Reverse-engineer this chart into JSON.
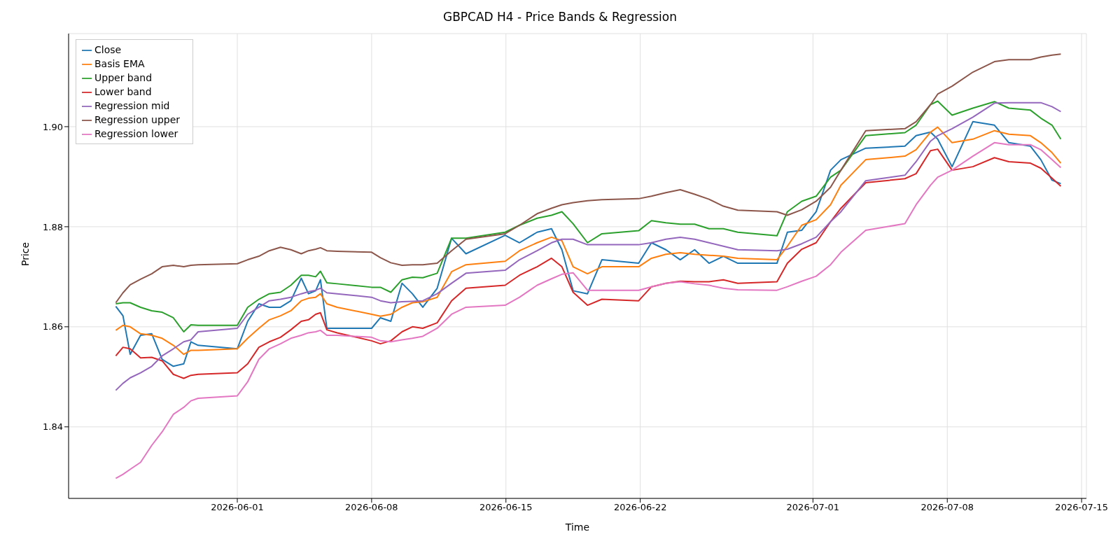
{
  "chart_data": {
    "type": "line",
    "title": "GBPCAD H4 - Price Bands & Regression",
    "xlabel": "Time",
    "ylabel": "Price",
    "x": [
      "2026-05-25T16:00",
      "2026-05-26T01:00",
      "2026-05-26T10:00",
      "2026-05-26T23:00",
      "2026-05-27T13:00",
      "2026-05-28T02:00",
      "2026-05-28T16:00",
      "2026-05-29T05:00",
      "2026-05-29T14:00",
      "2026-05-29T23:00",
      "2026-06-01T00:00",
      "2026-06-01T13:00",
      "2026-06-02T03:00",
      "2026-06-02T16:00",
      "2026-06-03T06:00",
      "2026-06-03T19:00",
      "2026-06-04T08:00",
      "2026-06-04T17:00",
      "2026-06-05T02:00",
      "2026-06-05T08:00",
      "2026-06-05T16:00",
      "2026-06-06T05:00",
      "2026-06-08T00:00",
      "2026-06-08T11:00",
      "2026-06-09T00:00",
      "2026-06-09T14:00",
      "2026-06-10T03:00",
      "2026-06-10T16:00",
      "2026-06-11T10:00",
      "2026-06-12T04:00",
      "2026-06-12T22:00",
      "2026-06-14T23:00",
      "2026-06-15T17:00",
      "2026-06-16T15:00",
      "2026-06-17T09:00",
      "2026-06-17T22:00",
      "2026-06-18T12:00",
      "2026-06-19T06:00",
      "2026-06-20T00:00",
      "2026-06-21T22:00",
      "2026-06-22T14:00",
      "2026-06-23T08:00",
      "2026-06-24T02:00",
      "2026-06-24T20:00",
      "2026-06-25T14:00",
      "2026-06-26T08:00",
      "2026-06-27T02:00",
      "2026-06-29T03:00",
      "2026-06-29T16:00",
      "2026-06-30T10:00",
      "2026-07-01T04:00",
      "2026-07-01T22:00",
      "2026-07-02T11:00",
      "2026-07-03T18:00",
      "2026-07-05T19:00",
      "2026-07-06T09:00",
      "2026-07-07T03:00",
      "2026-07-07T12:00",
      "2026-07-08T06:00",
      "2026-07-09T08:00",
      "2026-07-10T11:00",
      "2026-07-11T05:00",
      "2026-07-12T08:00",
      "2026-07-12T21:00",
      "2026-07-13T11:00",
      "2026-07-13T22:00"
    ],
    "series": [
      {
        "name": "Close",
        "color": "#1f77b4",
        "values": [
          1.8641,
          1.8622,
          1.8545,
          1.8583,
          1.8586,
          1.8535,
          1.8521,
          1.8526,
          1.857,
          1.8563,
          1.8556,
          1.8611,
          1.8646,
          1.8639,
          1.8639,
          1.8652,
          1.8697,
          1.8666,
          1.8672,
          1.8694,
          1.8597,
          1.8597,
          1.8597,
          1.8618,
          1.8611,
          1.8687,
          1.8666,
          1.8639,
          1.8677,
          1.8777,
          1.8746,
          1.8783,
          1.8768,
          1.8789,
          1.8796,
          1.8754,
          1.8672,
          1.8666,
          1.8734,
          1.8727,
          1.8768,
          1.8754,
          1.8734,
          1.8754,
          1.8727,
          1.8741,
          1.8727,
          1.8727,
          1.8789,
          1.8793,
          1.883,
          1.8913,
          1.8934,
          1.8957,
          1.8961,
          1.8982,
          1.8989,
          1.8975,
          1.892,
          1.901,
          1.9003,
          1.8968,
          1.8961,
          1.8934,
          1.8893,
          1.8886
        ]
      },
      {
        "name": "Basis EMA",
        "color": "#ff7f0e",
        "values": [
          1.8593,
          1.8603,
          1.86,
          1.8586,
          1.8583,
          1.8577,
          1.8563,
          1.8545,
          1.8553,
          1.8553,
          1.8556,
          1.8577,
          1.8597,
          1.8614,
          1.8622,
          1.8632,
          1.8652,
          1.8657,
          1.8659,
          1.8666,
          1.8646,
          1.8639,
          1.8625,
          1.8621,
          1.8625,
          1.8639,
          1.8648,
          1.865,
          1.8659,
          1.871,
          1.8724,
          1.8731,
          1.8752,
          1.8768,
          1.8779,
          1.8772,
          1.872,
          1.8706,
          1.872,
          1.872,
          1.8737,
          1.8745,
          1.8748,
          1.8745,
          1.8743,
          1.8741,
          1.8737,
          1.8734,
          1.8761,
          1.8803,
          1.8814,
          1.8844,
          1.8883,
          1.8934,
          1.8941,
          1.8954,
          1.8989,
          1.8999,
          1.8968,
          1.8975,
          1.8992,
          1.8985,
          1.8982,
          1.8968,
          1.8948,
          1.8927
        ]
      },
      {
        "name": "Upper band",
        "color": "#2ca02c",
        "values": [
          1.8646,
          1.8648,
          1.8648,
          1.8639,
          1.8632,
          1.8629,
          1.8618,
          1.859,
          1.8604,
          1.8603,
          1.8603,
          1.8639,
          1.8655,
          1.8666,
          1.8669,
          1.8683,
          1.8703,
          1.8703,
          1.87,
          1.8711,
          1.8688,
          1.8686,
          1.8679,
          1.8679,
          1.8669,
          1.8694,
          1.8699,
          1.8698,
          1.8707,
          1.8777,
          1.8777,
          1.8789,
          1.8803,
          1.8817,
          1.8823,
          1.883,
          1.8806,
          1.8768,
          1.8786,
          1.8792,
          1.8812,
          1.8808,
          1.8805,
          1.8805,
          1.8796,
          1.8796,
          1.8789,
          1.8782,
          1.883,
          1.8851,
          1.8861,
          1.8899,
          1.8913,
          1.8982,
          1.8988,
          1.9003,
          1.9044,
          1.9051,
          1.9023,
          1.9037,
          1.905,
          1.9037,
          1.9033,
          1.9017,
          1.9003,
          1.8975
        ]
      },
      {
        "name": "Lower band",
        "color": "#d62728",
        "values": [
          1.8542,
          1.8559,
          1.8556,
          1.8538,
          1.8539,
          1.8532,
          1.8505,
          1.8497,
          1.8503,
          1.8505,
          1.8508,
          1.8526,
          1.8559,
          1.857,
          1.8579,
          1.8594,
          1.8611,
          1.8614,
          1.8625,
          1.8628,
          1.8594,
          1.8588,
          1.8572,
          1.8566,
          1.8572,
          1.859,
          1.86,
          1.8597,
          1.8608,
          1.8652,
          1.8677,
          1.8683,
          1.8703,
          1.872,
          1.8737,
          1.872,
          1.8669,
          1.8643,
          1.8655,
          1.8652,
          1.868,
          1.8687,
          1.8691,
          1.869,
          1.869,
          1.8694,
          1.8687,
          1.869,
          1.8727,
          1.8755,
          1.8768,
          1.881,
          1.8837,
          1.8888,
          1.8896,
          1.8906,
          1.8952,
          1.8955,
          1.8913,
          1.892,
          1.8938,
          1.893,
          1.8927,
          1.8917,
          1.8897,
          1.8881
        ]
      },
      {
        "name": "Regression mid",
        "color": "#9467bd",
        "values": [
          1.8473,
          1.8487,
          1.8498,
          1.8508,
          1.8521,
          1.8542,
          1.8556,
          1.857,
          1.8574,
          1.859,
          1.8597,
          1.8625,
          1.8639,
          1.8652,
          1.8655,
          1.8659,
          1.8666,
          1.867,
          1.8673,
          1.8677,
          1.8668,
          1.8666,
          1.8659,
          1.8652,
          1.8648,
          1.865,
          1.8651,
          1.8652,
          1.8666,
          1.8687,
          1.8707,
          1.8713,
          1.8734,
          1.8752,
          1.8768,
          1.8775,
          1.8775,
          1.8764,
          1.8764,
          1.8764,
          1.8768,
          1.8775,
          1.8779,
          1.8775,
          1.8768,
          1.8761,
          1.8754,
          1.8752,
          1.8755,
          1.8766,
          1.8779,
          1.881,
          1.883,
          1.8892,
          1.8903,
          1.893,
          1.8971,
          1.8982,
          1.8996,
          1.9019,
          1.9047,
          1.9048,
          1.9048,
          1.9048,
          1.904,
          1.903
        ]
      },
      {
        "name": "Regression upper",
        "color": "#8c564b",
        "values": [
          1.8648,
          1.8668,
          1.8684,
          1.8695,
          1.8706,
          1.872,
          1.8723,
          1.872,
          1.8723,
          1.8724,
          1.8726,
          1.8734,
          1.8741,
          1.8752,
          1.8759,
          1.8754,
          1.8746,
          1.8752,
          1.8755,
          1.8758,
          1.8752,
          1.8751,
          1.8749,
          1.8738,
          1.8728,
          1.8723,
          1.8724,
          1.8724,
          1.8727,
          1.8752,
          1.8775,
          1.8786,
          1.8803,
          1.8826,
          1.8837,
          1.8844,
          1.8848,
          1.8852,
          1.8854,
          1.8856,
          1.8861,
          1.8868,
          1.8874,
          1.8865,
          1.8855,
          1.8841,
          1.8833,
          1.883,
          1.8823,
          1.8834,
          1.8851,
          1.8879,
          1.8913,
          1.8992,
          1.8996,
          1.901,
          1.9044,
          1.9065,
          1.9081,
          1.9109,
          1.913,
          1.9134,
          1.9134,
          1.9139,
          1.9143,
          1.9145
        ]
      },
      {
        "name": "Regression lower",
        "color": "#e377c2",
        "values": [
          1.8297,
          1.8305,
          1.8315,
          1.8329,
          1.8363,
          1.839,
          1.8425,
          1.8439,
          1.8452,
          1.8457,
          1.8462,
          1.849,
          1.8535,
          1.8556,
          1.8566,
          1.8577,
          1.8583,
          1.8588,
          1.859,
          1.8593,
          1.8583,
          1.8583,
          1.8579,
          1.8572,
          1.857,
          1.8574,
          1.8577,
          1.8581,
          1.8597,
          1.8625,
          1.8639,
          1.8643,
          1.8659,
          1.8683,
          1.8696,
          1.8705,
          1.8708,
          1.8673,
          1.8673,
          1.8673,
          1.868,
          1.8687,
          1.869,
          1.8686,
          1.8683,
          1.8677,
          1.8674,
          1.8673,
          1.868,
          1.8691,
          1.8701,
          1.8724,
          1.8749,
          1.8793,
          1.8806,
          1.8844,
          1.8883,
          1.8899,
          1.8913,
          1.8941,
          1.8968,
          1.8964,
          1.8964,
          1.8954,
          1.8934,
          1.8918
        ]
      }
    ],
    "xlim": [
      "2026-05-23T05:00",
      "2026-07-15T06:00"
    ],
    "xticks": [
      "2026-06-01",
      "2026-06-08",
      "2026-06-15",
      "2026-06-22",
      "2026-07-01",
      "2026-07-08",
      "2026-07-15"
    ],
    "ylim": [
      1.8257,
      1.9186
    ],
    "yticks": [
      1.84,
      1.86,
      1.88,
      {
        "value": 1.9,
        "label": "1.90"
      }
    ],
    "grid": true,
    "legend": "top left",
    "marker": "none",
    "line_style": "solid"
  }
}
